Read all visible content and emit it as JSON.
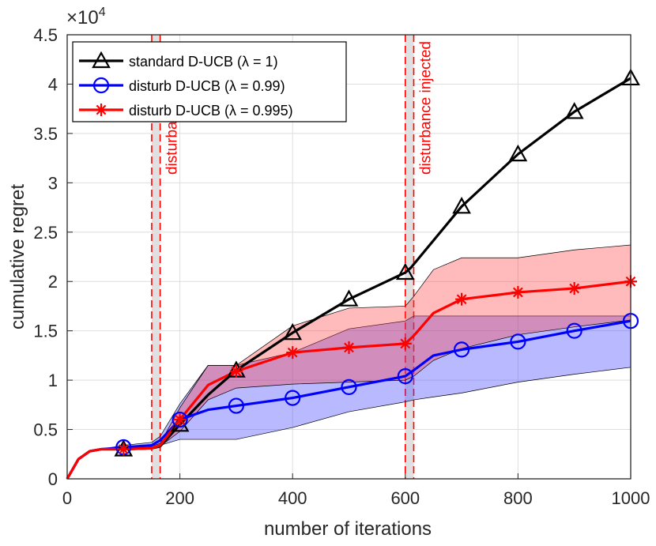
{
  "chart_data": {
    "type": "line",
    "xlabel": "number of iterations",
    "ylabel": "cumulative regret",
    "y_multiplier": "×10",
    "y_multiplier_exp": "4",
    "xlim": [
      0,
      1000
    ],
    "ylim": [
      0,
      45000
    ],
    "x_ticks": [
      0,
      200,
      400,
      600,
      800,
      1000
    ],
    "x_tick_labels": [
      "0",
      "200",
      "400",
      "600",
      "800",
      "1000"
    ],
    "y_ticks": [
      0,
      5000,
      10000,
      15000,
      20000,
      25000,
      30000,
      35000,
      40000,
      45000
    ],
    "y_tick_labels": [
      "0",
      "0.5",
      "1",
      "1.5",
      "2",
      "2.5",
      "3",
      "3.5",
      "4",
      "4.5"
    ],
    "grid": true,
    "legend_position": "top-left",
    "series": [
      {
        "name": "standard D-UCB (λ = 1)",
        "color": "#000000",
        "marker": "triangle",
        "x": [
          0,
          20,
          40,
          60,
          100,
          150,
          165,
          200,
          250,
          300,
          400,
          500,
          600,
          610,
          700,
          800,
          900,
          1000
        ],
        "y": [
          0,
          2000,
          2800,
          3000,
          3000,
          3100,
          3300,
          5500,
          8500,
          11000,
          14800,
          18200,
          20900,
          21400,
          27600,
          32900,
          37200,
          40600
        ],
        "marker_x": [
          100,
          200,
          300,
          400,
          500,
          600,
          700,
          800,
          900,
          1000
        ],
        "marker_y": [
          3000,
          5500,
          11000,
          14800,
          18200,
          20900,
          27600,
          32900,
          37200,
          40600
        ]
      },
      {
        "name": "disturb D-UCB (λ = 0.99)",
        "color": "#0000ff",
        "marker": "circle",
        "x": [
          0,
          20,
          40,
          60,
          100,
          150,
          165,
          200,
          250,
          300,
          400,
          500,
          600,
          615,
          650,
          700,
          800,
          900,
          1000
        ],
        "y": [
          0,
          2000,
          2800,
          3000,
          3200,
          3400,
          3900,
          6000,
          7000,
          7400,
          8200,
          9300,
          10400,
          11000,
          12500,
          13100,
          13900,
          15000,
          16000
        ],
        "marker_x": [
          100,
          200,
          300,
          400,
          500,
          600,
          700,
          800,
          900,
          1000
        ],
        "marker_y": [
          3200,
          6000,
          7400,
          8200,
          9300,
          10400,
          13100,
          13900,
          15000,
          16000
        ],
        "band_lower": [
          0,
          2000,
          2800,
          3000,
          3000,
          3100,
          3400,
          4000,
          4000,
          4000,
          5200,
          6800,
          7800,
          8000,
          8300,
          8700,
          9800,
          10600,
          11300
        ],
        "band_upper": [
          0,
          2000,
          2800,
          3000,
          3400,
          3700,
          4300,
          7600,
          11500,
          11500,
          12800,
          15200,
          16000,
          16500,
          16500,
          16500,
          16500,
          16500,
          16500
        ]
      },
      {
        "name": "disturb D-UCB (λ = 0.995)",
        "color": "#ff0000",
        "marker": "asterisk",
        "x": [
          0,
          20,
          40,
          60,
          100,
          150,
          165,
          200,
          250,
          300,
          400,
          500,
          600,
          615,
          650,
          700,
          800,
          900,
          1000
        ],
        "y": [
          0,
          2000,
          2800,
          3000,
          3000,
          3100,
          3400,
          6000,
          9500,
          10900,
          12800,
          13300,
          13700,
          14500,
          16800,
          18200,
          18900,
          19300,
          20000
        ],
        "marker_x": [
          100,
          200,
          300,
          400,
          500,
          600,
          700,
          800,
          900,
          1000
        ],
        "marker_y": [
          3000,
          6000,
          10900,
          12800,
          13300,
          13700,
          18200,
          18900,
          19300,
          20000
        ],
        "band_lower": [
          0,
          2000,
          2800,
          3000,
          3000,
          3100,
          3300,
          4800,
          8000,
          9200,
          9600,
          9800,
          10000,
          10400,
          12000,
          13200,
          14600,
          15400,
          16100
        ],
        "band_upper": [
          0,
          2000,
          2800,
          3000,
          3100,
          3300,
          3600,
          7200,
          11500,
          11500,
          15500,
          17300,
          17500,
          18500,
          21200,
          22400,
          22400,
          23200,
          23700
        ]
      }
    ],
    "disturbances": [
      {
        "lines": [
          150,
          165
        ],
        "label": "disturbance injected"
      },
      {
        "lines": [
          600,
          615
        ],
        "label": "disturbance injected"
      }
    ]
  }
}
